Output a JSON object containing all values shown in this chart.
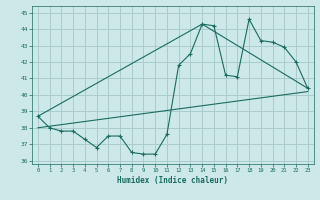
{
  "xlabel": "Humidex (Indice chaleur)",
  "xlim": [
    -0.5,
    23.5
  ],
  "ylim": [
    35.8,
    45.4
  ],
  "yticks": [
    36,
    37,
    38,
    39,
    40,
    41,
    42,
    43,
    44,
    45
  ],
  "xticks": [
    0,
    1,
    2,
    3,
    4,
    5,
    6,
    7,
    8,
    9,
    10,
    11,
    12,
    13,
    14,
    15,
    16,
    17,
    18,
    19,
    20,
    21,
    22,
    23
  ],
  "bg_color": "#cce8e8",
  "grid_color": "#aacccc",
  "line_color": "#1a6b60",
  "series1_x": [
    0,
    1,
    2,
    3,
    4,
    5,
    6,
    7,
    8,
    9,
    10,
    11,
    12,
    13,
    14,
    15,
    16,
    17,
    18,
    19,
    20,
    21,
    22,
    23
  ],
  "series1_y": [
    38.7,
    38.0,
    37.8,
    37.8,
    37.3,
    36.8,
    37.5,
    37.5,
    36.5,
    36.4,
    36.4,
    37.6,
    41.8,
    42.5,
    44.3,
    44.2,
    41.2,
    41.1,
    44.6,
    43.3,
    43.2,
    42.9,
    42.0,
    40.4
  ],
  "lower_line_x": [
    0,
    23
  ],
  "lower_line_y": [
    38.0,
    40.2
  ],
  "upper_line_x": [
    0,
    14,
    23
  ],
  "upper_line_y": [
    38.7,
    44.3,
    40.4
  ]
}
